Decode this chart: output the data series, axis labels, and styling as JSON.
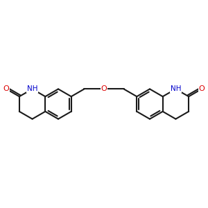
{
  "background_color": "#ffffff",
  "bond_color": "#1a1a1a",
  "oxygen_color": "#dd0000",
  "nitrogen_color": "#0000cc",
  "line_width": 1.5,
  "figsize": [
    3.0,
    3.0
  ],
  "dpi": 100,
  "xlim": [
    0,
    10
  ],
  "ylim": [
    2,
    8
  ]
}
